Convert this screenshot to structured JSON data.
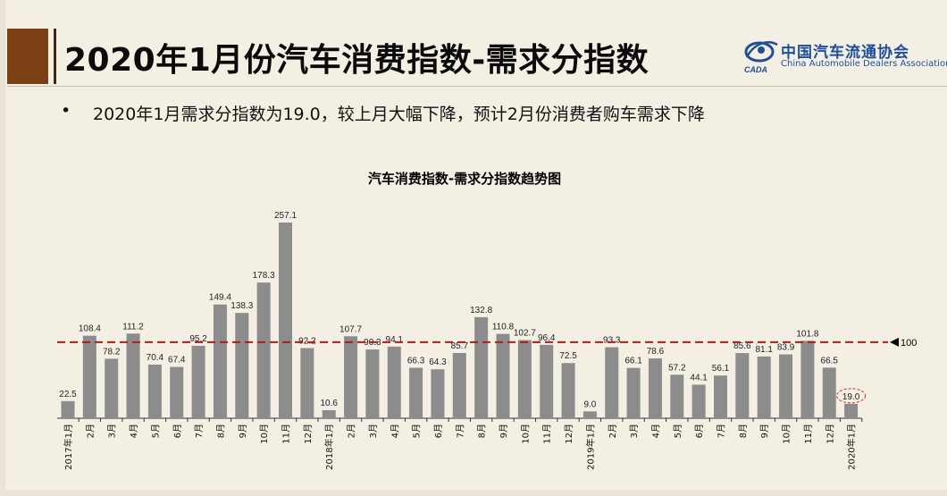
{
  "slide": {
    "title": "2020年1月份汽车消费指数-需求分指数",
    "bullet_symbol": "•",
    "bullet_text": "2020年1月需求分指数为19.0，较上月大幅下降，预计2月份消费者购车需求下降"
  },
  "logo": {
    "name_cn": "中国汽车流通协会",
    "name_en": "China Automobile Dealers Association",
    "mark_text": "CADA",
    "mark_icon": "swirl-globe-icon"
  },
  "colors": {
    "bar": "#8c8c8c",
    "reference_line": "#b31b1b",
    "highlight_circle": "#d9302f",
    "title_block": "#7a3f12"
  },
  "chart_data": {
    "type": "bar",
    "title": "汽车消费指数-需求分指数趋势图",
    "categories": [
      "2017年1月",
      "2月",
      "3月",
      "4月",
      "5月",
      "6月",
      "7月",
      "8月",
      "9月",
      "10月",
      "11月",
      "12月",
      "2018年1月",
      "2月",
      "3月",
      "4月",
      "5月",
      "6月",
      "7月",
      "8月",
      "9月",
      "10月",
      "11月",
      "12月",
      "2019年1月",
      "2月",
      "3月",
      "4月",
      "5月",
      "6月",
      "7月",
      "8月",
      "9月",
      "10月",
      "11月",
      "12月",
      "2020年1月"
    ],
    "values": [
      22.5,
      108.4,
      78.2,
      111.2,
      70.4,
      67.4,
      95.2,
      149.4,
      138.3,
      178.3,
      257.1,
      92.2,
      10.6,
      107.7,
      90.3,
      94.1,
      66.3,
      64.3,
      85.7,
      132.8,
      110.8,
      102.7,
      96.4,
      72.5,
      9.0,
      93.3,
      66.1,
      78.6,
      57.2,
      44.1,
      56.1,
      85.6,
      81.1,
      83.9,
      101.8,
      66.5,
      19.0
    ],
    "value_labels": [
      "22.5",
      "108.4",
      "78.2",
      "111.2",
      "70.4",
      "67.4",
      "95.2",
      "149.4",
      "138.3",
      "178.3",
      "257.1",
      "92.2",
      "10.6",
      "107.7",
      "90.3",
      "94.1",
      "66.3",
      "64.3",
      "85.7",
      "132.8",
      "110.8",
      "102.7",
      "96.4",
      "72.5",
      "9.0",
      "93.3",
      "66.1",
      "78.6",
      "57.2",
      "44.1",
      "56.1",
      "85.6",
      "81.1",
      "83.9",
      "101.8",
      "66.5",
      "19.0"
    ],
    "reference_line": {
      "value": 100,
      "label": "100"
    },
    "highlight_index": 36,
    "ylim": [
      0,
      257.1
    ],
    "grid": false,
    "legend": "none"
  }
}
